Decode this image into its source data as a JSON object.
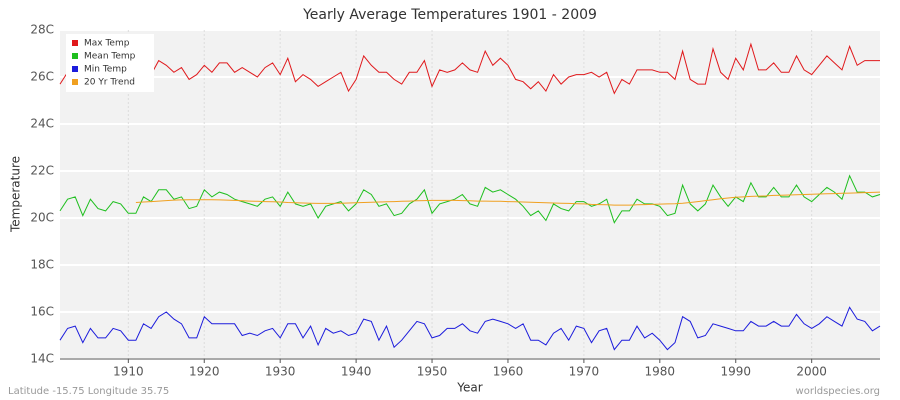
{
  "chart_data": {
    "type": "line",
    "title": "Yearly Average Temperatures 1901 - 2009",
    "x_label": "Year",
    "y_label": "Temperature",
    "footer_left": "Latitude -15.75 Longitude 35.75",
    "footer_right": "worldspecies.org",
    "legend": "top-left",
    "grid": true,
    "xlim": [
      1901,
      2009
    ],
    "xticks": [
      1910,
      1920,
      1930,
      1940,
      1950,
      1960,
      1970,
      1980,
      1990,
      2000
    ],
    "ylim": [
      14,
      28
    ],
    "yticks": [
      {
        "value": 14,
        "label": "14C"
      },
      {
        "value": 16,
        "label": "16C"
      },
      {
        "value": 18,
        "label": "18C"
      },
      {
        "value": 20,
        "label": "20C"
      },
      {
        "value": 22,
        "label": "22C"
      },
      {
        "value": 24,
        "label": "24C"
      },
      {
        "value": 26,
        "label": "26C"
      },
      {
        "value": 28,
        "label": "28C"
      }
    ],
    "x": [
      1901,
      1902,
      1903,
      1904,
      1905,
      1906,
      1907,
      1908,
      1909,
      1910,
      1911,
      1912,
      1913,
      1914,
      1915,
      1916,
      1917,
      1918,
      1919,
      1920,
      1921,
      1922,
      1923,
      1924,
      1925,
      1926,
      1927,
      1928,
      1929,
      1930,
      1931,
      1932,
      1933,
      1934,
      1935,
      1936,
      1937,
      1938,
      1939,
      1940,
      1941,
      1942,
      1943,
      1944,
      1945,
      1946,
      1947,
      1948,
      1949,
      1950,
      1951,
      1952,
      1953,
      1954,
      1955,
      1956,
      1957,
      1958,
      1959,
      1960,
      1961,
      1962,
      1963,
      1964,
      1965,
      1966,
      1967,
      1968,
      1969,
      1970,
      1971,
      1972,
      1973,
      1974,
      1975,
      1976,
      1977,
      1978,
      1979,
      1980,
      1981,
      1982,
      1983,
      1984,
      1985,
      1986,
      1987,
      1988,
      1989,
      1990,
      1991,
      1992,
      1993,
      1994,
      1995,
      1996,
      1997,
      1998,
      1999,
      2000,
      2001,
      2002,
      2003,
      2004,
      2005,
      2006,
      2007,
      2008,
      2009
    ],
    "series": [
      {
        "name": "Max Temp",
        "color": "#e0191c",
        "values": [
          25.7,
          26.2,
          26.0,
          25.9,
          26.5,
          26.3,
          26.0,
          26.1,
          26.4,
          26.3,
          25.9,
          26.5,
          26.1,
          26.7,
          26.5,
          26.2,
          26.4,
          25.9,
          26.1,
          26.5,
          26.2,
          26.6,
          26.6,
          26.2,
          26.4,
          26.2,
          26.0,
          26.4,
          26.6,
          26.1,
          26.8,
          25.8,
          26.1,
          25.9,
          25.6,
          25.8,
          26.0,
          26.2,
          25.4,
          25.9,
          26.9,
          26.5,
          26.2,
          26.2,
          25.9,
          25.7,
          26.2,
          26.2,
          26.7,
          25.6,
          26.3,
          26.2,
          26.3,
          26.6,
          26.3,
          26.2,
          27.1,
          26.5,
          26.8,
          26.5,
          25.9,
          25.8,
          25.5,
          25.8,
          25.4,
          26.1,
          25.7,
          26.0,
          26.1,
          26.1,
          26.2,
          26.0,
          26.2,
          25.3,
          25.9,
          25.7,
          26.3,
          26.3,
          26.3,
          26.2,
          26.2,
          25.9,
          27.1,
          25.9,
          25.7,
          25.7,
          27.2,
          26.2,
          25.9,
          26.8,
          26.3,
          27.4,
          26.3,
          26.3,
          26.6,
          26.2,
          26.2,
          26.9,
          26.3,
          26.1,
          26.5,
          26.9,
          26.6,
          26.3,
          27.3,
          26.5,
          26.7,
          26.7,
          26.7
        ]
      },
      {
        "name": "Mean Temp",
        "color": "#1fbf1f",
        "values": [
          20.3,
          20.8,
          20.9,
          20.1,
          20.8,
          20.4,
          20.3,
          20.7,
          20.6,
          20.2,
          20.2,
          20.9,
          20.7,
          21.2,
          21.2,
          20.8,
          20.9,
          20.4,
          20.5,
          21.2,
          20.9,
          21.1,
          21.0,
          20.8,
          20.7,
          20.6,
          20.5,
          20.8,
          20.9,
          20.5,
          21.1,
          20.6,
          20.5,
          20.6,
          20.0,
          20.5,
          20.6,
          20.7,
          20.3,
          20.6,
          21.2,
          21.0,
          20.5,
          20.6,
          20.1,
          20.2,
          20.6,
          20.8,
          21.2,
          20.2,
          20.6,
          20.7,
          20.8,
          21.0,
          20.6,
          20.5,
          21.3,
          21.1,
          21.2,
          21.0,
          20.8,
          20.5,
          20.1,
          20.3,
          19.9,
          20.6,
          20.4,
          20.3,
          20.7,
          20.7,
          20.5,
          20.6,
          20.8,
          19.8,
          20.3,
          20.3,
          20.8,
          20.6,
          20.6,
          20.5,
          20.1,
          20.2,
          21.4,
          20.6,
          20.3,
          20.6,
          21.4,
          20.9,
          20.5,
          20.9,
          20.7,
          21.5,
          20.9,
          20.9,
          21.3,
          20.9,
          20.9,
          21.4,
          20.9,
          20.7,
          21.0,
          21.3,
          21.1,
          20.8,
          21.8,
          21.1,
          21.1,
          20.9,
          21.0
        ]
      },
      {
        "name": "Min Temp",
        "color": "#1c1cdc",
        "values": [
          14.8,
          15.3,
          15.4,
          14.7,
          15.3,
          14.9,
          14.9,
          15.3,
          15.2,
          14.8,
          14.8,
          15.5,
          15.3,
          15.8,
          16.0,
          15.7,
          15.5,
          14.9,
          14.9,
          15.8,
          15.5,
          15.5,
          15.5,
          15.5,
          15.0,
          15.1,
          15.0,
          15.2,
          15.3,
          14.9,
          15.5,
          15.5,
          14.9,
          15.4,
          14.6,
          15.3,
          15.1,
          15.2,
          15.0,
          15.1,
          15.7,
          15.6,
          14.8,
          15.4,
          14.5,
          14.8,
          15.2,
          15.6,
          15.5,
          14.9,
          15.0,
          15.3,
          15.3,
          15.5,
          15.2,
          15.1,
          15.6,
          15.7,
          15.6,
          15.5,
          15.3,
          15.5,
          14.8,
          14.8,
          14.6,
          15.1,
          15.3,
          14.8,
          15.4,
          15.3,
          14.7,
          15.2,
          15.3,
          14.4,
          14.8,
          14.8,
          15.4,
          14.9,
          15.1,
          14.8,
          14.4,
          14.7,
          15.8,
          15.6,
          14.9,
          15.0,
          15.5,
          15.4,
          15.3,
          15.2,
          15.2,
          15.6,
          15.4,
          15.4,
          15.6,
          15.4,
          15.4,
          15.9,
          15.5,
          15.3,
          15.5,
          15.8,
          15.6,
          15.4,
          16.2,
          15.7,
          15.6,
          15.2,
          15.4
        ]
      },
      {
        "name": "20 Yr Trend",
        "color": "#f0a020",
        "values": [
          null,
          null,
          null,
          null,
          null,
          null,
          null,
          null,
          null,
          null,
          20.66,
          20.68,
          20.7,
          20.72,
          20.74,
          20.76,
          20.77,
          20.78,
          20.78,
          20.78,
          20.78,
          20.77,
          20.76,
          20.75,
          20.73,
          20.72,
          20.71,
          20.7,
          20.69,
          20.68,
          20.66,
          20.65,
          20.64,
          20.63,
          20.62,
          20.62,
          20.62,
          20.63,
          20.64,
          20.65,
          20.66,
          20.67,
          20.68,
          20.69,
          20.7,
          20.71,
          20.72,
          20.73,
          20.74,
          20.75,
          20.75,
          20.75,
          20.75,
          20.74,
          20.73,
          20.72,
          20.72,
          20.71,
          20.71,
          20.7,
          20.69,
          20.68,
          20.67,
          20.66,
          20.65,
          20.64,
          20.63,
          20.62,
          20.61,
          20.6,
          20.58,
          20.57,
          20.56,
          20.55,
          20.55,
          20.55,
          20.56,
          20.57,
          20.58,
          20.59,
          20.6,
          20.61,
          20.63,
          20.66,
          20.7,
          20.74,
          20.78,
          20.82,
          20.85,
          20.88,
          20.9,
          20.92,
          20.93,
          20.94,
          20.96,
          20.97,
          20.98,
          20.99,
          21.0,
          21.01,
          21.02,
          21.03,
          21.04,
          21.05,
          21.06,
          21.07,
          21.08,
          21.09,
          21.1
        ]
      }
    ]
  }
}
